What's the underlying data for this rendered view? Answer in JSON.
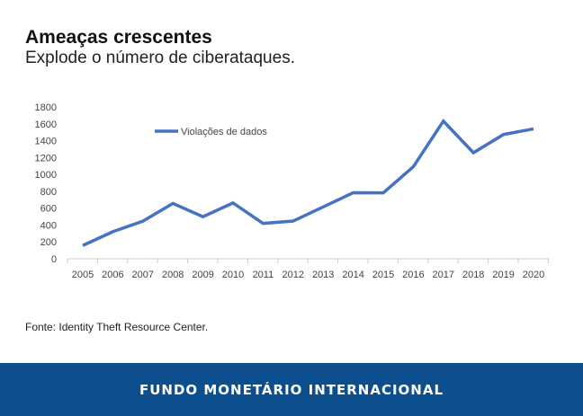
{
  "header": {
    "title": "Ameaças crescentes",
    "subtitle": "Explode o número de ciberataques."
  },
  "source": "Fonte: Identity Theft Resource Center.",
  "footer": {
    "label": "FUNDO MONETÁRIO INTERNACIONAL"
  },
  "colors": {
    "line": "#4472c4",
    "footer": "#0d4e8e"
  },
  "chart_data": {
    "type": "line",
    "title": "",
    "xlabel": "",
    "ylabel": "",
    "categories": [
      "2005",
      "2006",
      "2007",
      "2008",
      "2009",
      "2010",
      "2011",
      "2012",
      "2013",
      "2014",
      "2015",
      "2016",
      "2017",
      "2018",
      "2019",
      "2020"
    ],
    "series": [
      {
        "name": "Violações de dados",
        "values": [
          157,
          321,
          446,
          656,
          498,
          662,
          419,
          447,
          614,
          783,
          781,
          1091,
          1632,
          1257,
          1473,
          1540
        ]
      }
    ],
    "ylim": [
      0,
      1800
    ],
    "yticks": [
      0,
      200,
      400,
      600,
      800,
      1000,
      1200,
      1400,
      1600,
      1800
    ],
    "grid": false,
    "legend": "top-left"
  }
}
